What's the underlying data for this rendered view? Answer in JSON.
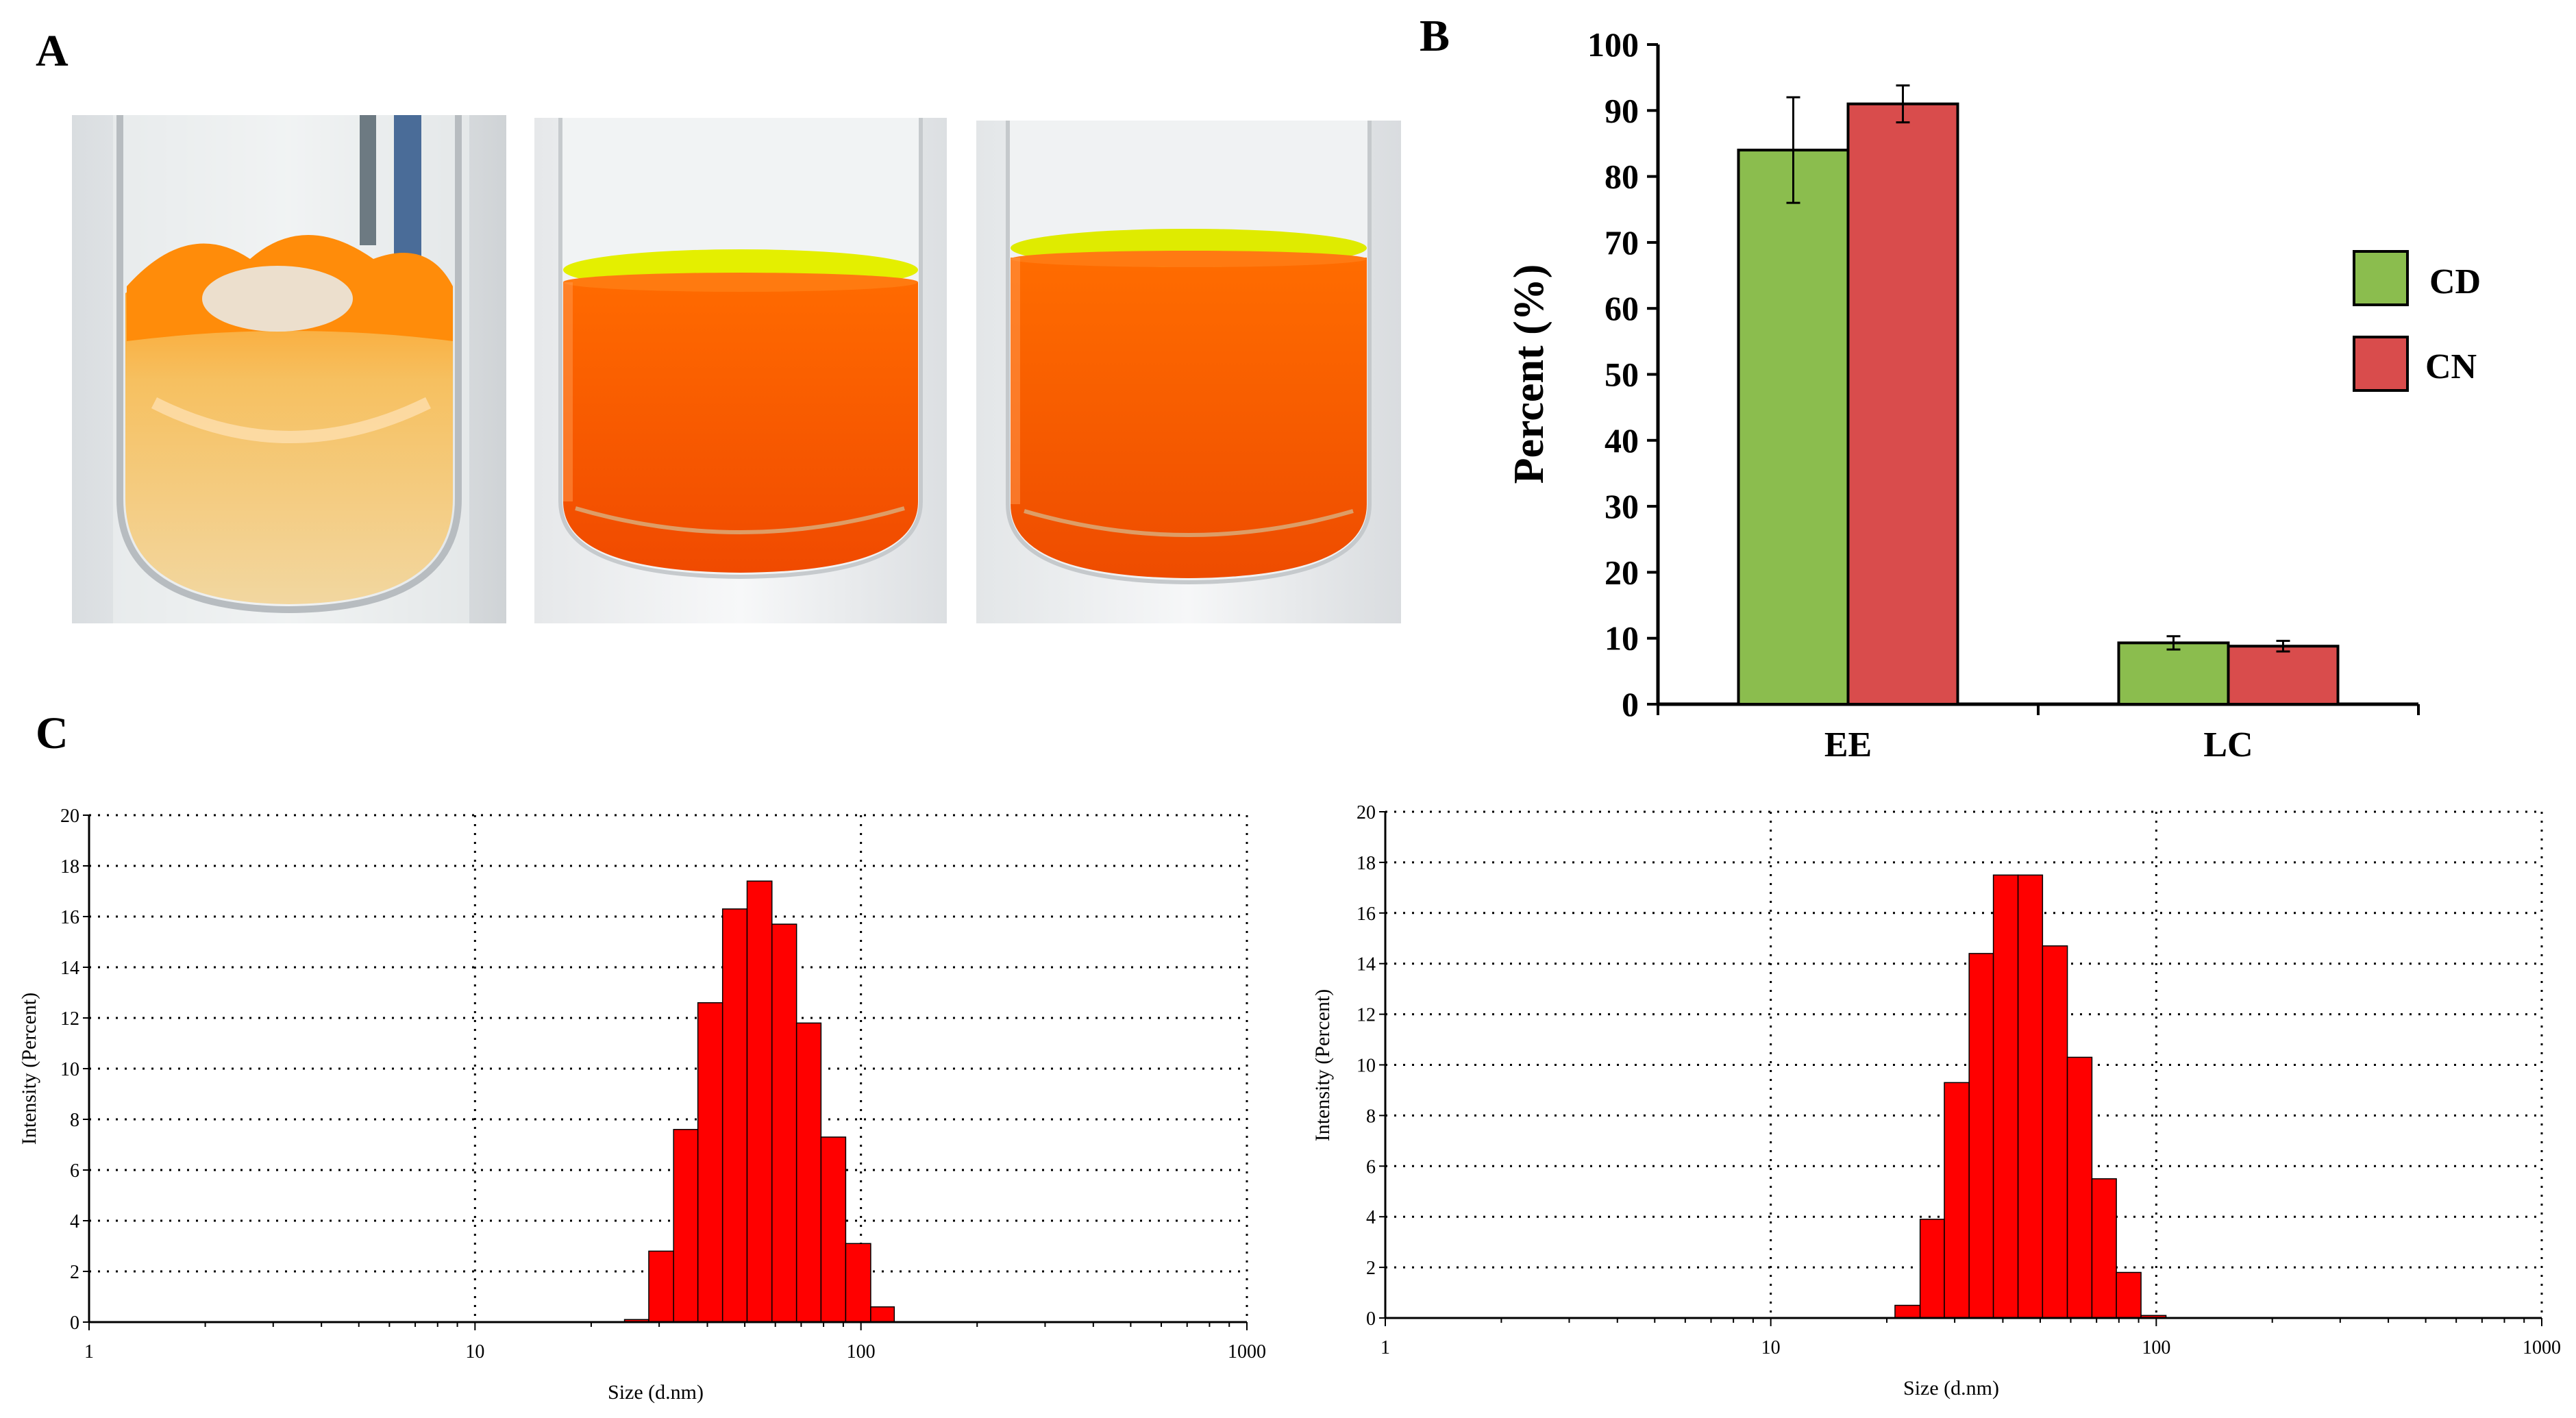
{
  "panels": {
    "a": "A",
    "b": "B",
    "c": "C"
  },
  "colors": {
    "cd_bar": "#8bbd4e",
    "cn_bar": "#d94c4c",
    "histogram_bar": "#ff0000",
    "grid": "#000000",
    "vial_glass": "#e8ecef",
    "orange_solution": "#ff5a00",
    "yellow_meniscus": "#e2ee00",
    "dispersion_orange": "#ffa020"
  },
  "chart_data": [
    {
      "id": "B",
      "type": "bar",
      "categories": [
        "EE",
        "LC"
      ],
      "series": [
        {
          "name": "CD",
          "values": [
            84,
            9.3
          ],
          "errors": [
            8,
            1
          ]
        },
        {
          "name": "CN",
          "values": [
            91,
            8.8
          ],
          "errors": [
            2.8,
            0.8
          ]
        }
      ],
      "xlabel": "",
      "ylabel": "Percent (%)",
      "ylim": [
        0,
        100
      ],
      "yticks": [
        0,
        10,
        20,
        30,
        40,
        50,
        60,
        70,
        80,
        90,
        100
      ],
      "legend_position": "right",
      "grid": false
    },
    {
      "id": "C-left",
      "type": "bar",
      "x_scale": "log",
      "xlim": [
        1,
        1000
      ],
      "xticks": [
        "1",
        "10",
        "100",
        "1000"
      ],
      "ylim": [
        0,
        20
      ],
      "yticks": [
        0,
        2,
        4,
        6,
        8,
        10,
        12,
        14,
        16,
        18,
        20
      ],
      "xlabel": "Size (d.nm)",
      "ylabel": "Intensity (Percent)",
      "grid": true,
      "bin_edges": [
        24.4,
        28.2,
        32.7,
        37.8,
        43.8,
        50.7,
        58.8,
        68.1,
        78.8,
        91.3,
        106,
        122,
        142
      ],
      "values": [
        0.1,
        2.8,
        7.6,
        12.6,
        16.3,
        17.4,
        15.7,
        11.8,
        7.3,
        3.1,
        0.6,
        0
      ]
    },
    {
      "id": "C-right",
      "type": "bar",
      "x_scale": "log",
      "xlim": [
        1,
        1000
      ],
      "xticks": [
        "1",
        "10",
        "100",
        "1000"
      ],
      "ylim": [
        0,
        20
      ],
      "yticks": [
        0,
        2,
        4,
        6,
        8,
        10,
        12,
        14,
        16,
        18,
        20
      ],
      "xlabel": "Size (d.nm)",
      "ylabel": "Intensity (Percent)",
      "grid": true,
      "bin_edges": [
        21.0,
        24.4,
        28.2,
        32.7,
        37.8,
        43.8,
        50.7,
        58.8,
        68.1,
        78.8,
        91.3,
        106
      ],
      "values": [
        0.5,
        3.9,
        9.3,
        14.4,
        17.5,
        17.5,
        14.7,
        10.3,
        5.5,
        1.8,
        0.1
      ]
    }
  ]
}
